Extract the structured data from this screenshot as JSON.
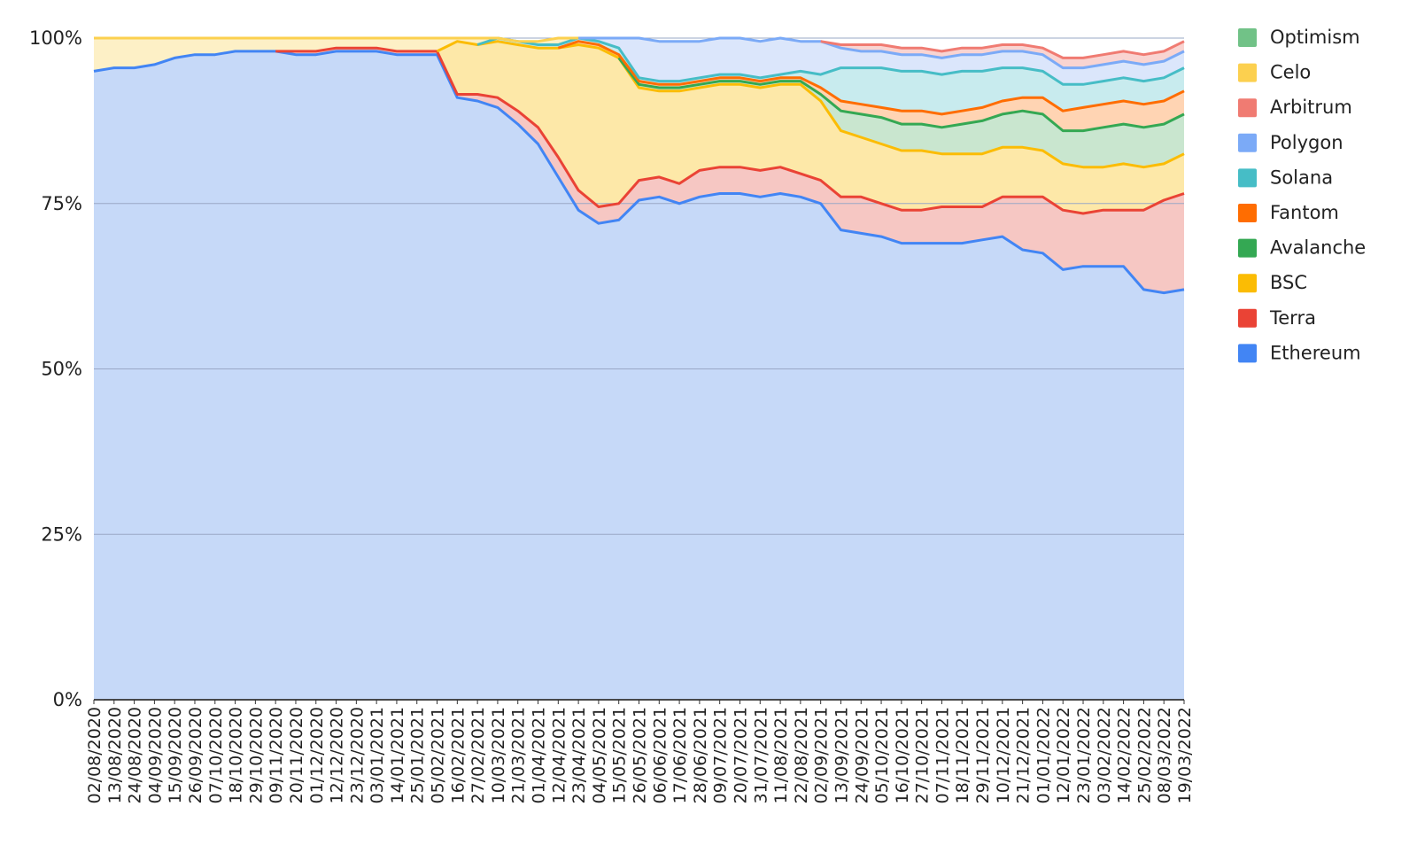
{
  "chart_data": {
    "type": "area",
    "stacked": true,
    "normalized": true,
    "title": "",
    "xlabel": "",
    "ylabel": "",
    "ylim": [
      0,
      100
    ],
    "y_ticks": [
      "0%",
      "25%",
      "50%",
      "75%",
      "100%"
    ],
    "grid": true,
    "legend_position": "right",
    "x_tick_labels": [
      "02/08/2020",
      "13/08/2020",
      "24/08/2020",
      "04/09/2020",
      "15/09/2020",
      "26/09/2020",
      "07/10/2020",
      "18/10/2020",
      "29/10/2020",
      "09/11/2020",
      "20/11/2020",
      "01/12/2020",
      "12/12/2020",
      "23/12/2020",
      "03/01/2021",
      "14/01/2021",
      "25/01/2021",
      "05/02/2021",
      "16/02/2021",
      "27/02/2021",
      "10/03/2021",
      "21/03/2021",
      "01/04/2021",
      "12/04/2021",
      "23/04/2021",
      "04/05/2021",
      "15/05/2021",
      "26/05/2021",
      "06/06/2021",
      "17/06/2021",
      "28/06/2021",
      "09/07/2021",
      "20/07/2021",
      "31/07/2021",
      "11/08/2021",
      "22/08/2021",
      "02/09/2021",
      "13/09/2021",
      "24/09/2021",
      "05/10/2021",
      "16/10/2021",
      "27/10/2021",
      "07/11/2021",
      "18/11/2021",
      "29/11/2021",
      "10/12/2021",
      "21/12/2021",
      "01/01/2022",
      "12/01/2022",
      "23/01/2022",
      "03/02/2022",
      "14/02/2022",
      "25/02/2022",
      "08/03/2022",
      "19/03/2022"
    ],
    "x": [
      "02/08/2020",
      "13/08/2020",
      "24/08/2020",
      "04/09/2020",
      "15/09/2020",
      "26/09/2020",
      "07/10/2020",
      "18/10/2020",
      "29/10/2020",
      "09/11/2020",
      "20/11/2020",
      "01/12/2020",
      "12/12/2020",
      "23/12/2020",
      "03/01/2021",
      "14/01/2021",
      "25/01/2021",
      "05/02/2021",
      "16/02/2021",
      "27/02/2021",
      "10/03/2021",
      "21/03/2021",
      "01/04/2021",
      "12/04/2021",
      "23/04/2021",
      "04/05/2021",
      "15/05/2021",
      "26/05/2021",
      "06/06/2021",
      "17/06/2021",
      "28/06/2021",
      "09/07/2021",
      "20/07/2021",
      "31/07/2021",
      "11/08/2021",
      "22/08/2021",
      "02/09/2021",
      "13/09/2021",
      "24/09/2021",
      "05/10/2021",
      "16/10/2021",
      "27/10/2021",
      "07/11/2021",
      "18/11/2021",
      "29/11/2021",
      "10/12/2021",
      "21/12/2021",
      "01/01/2022",
      "12/01/2022",
      "23/01/2022",
      "03/02/2022",
      "14/02/2022",
      "25/02/2022",
      "08/03/2022",
      "19/03/2022"
    ],
    "series": [
      {
        "name": "Ethereum",
        "color": "#4285f4",
        "fill": "#c6d9f8",
        "values": [
          95,
          95.5,
          95.5,
          96,
          97,
          97.5,
          97.5,
          98,
          98,
          98,
          97.5,
          97.5,
          98,
          98,
          98,
          97.5,
          97.5,
          97.5,
          91,
          90.5,
          89.5,
          87,
          84,
          79,
          74,
          72,
          72.5,
          75.5,
          76,
          75,
          76,
          76.5,
          76.5,
          76,
          76.5,
          76,
          75,
          71,
          70.5,
          70,
          69,
          69,
          69,
          69,
          69.5,
          70,
          68,
          67.5,
          65,
          65.5,
          65.5,
          65.5,
          62,
          61.5,
          62
        ]
      },
      {
        "name": "Terra",
        "color": "#ea4335",
        "fill": "#f6c7c3",
        "values": [
          0,
          0,
          0,
          0,
          0,
          0,
          0,
          0,
          0,
          0,
          0.5,
          0.5,
          0.5,
          0.5,
          0.5,
          0.5,
          0.5,
          0.5,
          0.5,
          1,
          1.5,
          2,
          2.5,
          3,
          3,
          2.5,
          2.5,
          3,
          3,
          3,
          4,
          4,
          4,
          4,
          4,
          3.5,
          3.5,
          5,
          5.5,
          5,
          5,
          5,
          5.5,
          5.5,
          5,
          6,
          8,
          8.5,
          9,
          8,
          8.5,
          8.5,
          12,
          14,
          14.5
        ]
      },
      {
        "name": "BSC",
        "color": "#fbbc04",
        "fill": "#fde8a8",
        "values": [
          0,
          0,
          0,
          0,
          0,
          0,
          0,
          0,
          0,
          0,
          0,
          0,
          0,
          0,
          0,
          0,
          0,
          0,
          8,
          7.5,
          8.5,
          10,
          12,
          16.5,
          22,
          24,
          22,
          14,
          13,
          14,
          12.5,
          12.5,
          12.5,
          12.5,
          12.5,
          13.5,
          12,
          10,
          9,
          9,
          9,
          9,
          8,
          8,
          8,
          7.5,
          7.5,
          7,
          7,
          7,
          6.5,
          7,
          6.5,
          5.5,
          6
        ]
      },
      {
        "name": "Avalanche",
        "color": "#34a853",
        "fill": "#c9e6cf",
        "values": [
          0,
          0,
          0,
          0,
          0,
          0,
          0,
          0,
          0,
          0,
          0,
          0,
          0,
          0,
          0,
          0,
          0,
          0,
          0,
          0,
          0,
          0,
          0,
          0,
          0,
          0,
          0,
          0.5,
          0.5,
          0.5,
          0.5,
          0.5,
          0.5,
          0.5,
          0.5,
          0.5,
          1,
          3,
          3.5,
          4,
          4,
          4,
          4,
          4.5,
          5,
          5,
          5.5,
          5.5,
          5,
          5.5,
          6,
          6,
          6,
          6,
          6
        ]
      },
      {
        "name": "Fantom",
        "color": "#ff6d01",
        "fill": "#ffd4b3",
        "values": [
          0,
          0,
          0,
          0,
          0,
          0,
          0,
          0,
          0,
          0,
          0,
          0,
          0,
          0,
          0,
          0,
          0,
          0,
          0,
          0,
          0,
          0,
          0,
          0,
          0.5,
          0.5,
          0.5,
          0.5,
          0.5,
          0.5,
          0.5,
          0.5,
          0.5,
          0.5,
          0.5,
          0.5,
          1,
          1.5,
          1.5,
          1.5,
          2,
          2,
          2,
          2,
          2,
          2,
          2,
          2.5,
          3,
          3.5,
          3.5,
          3.5,
          3.5,
          3.5,
          3.5
        ]
      },
      {
        "name": "Solana",
        "color": "#46bdc6",
        "fill": "#c8ebee",
        "values": [
          0,
          0,
          0,
          0,
          0,
          0,
          0,
          0,
          0,
          0,
          0,
          0,
          0,
          0,
          0,
          0,
          0,
          0,
          0,
          0,
          0.5,
          0.5,
          0.5,
          0.5,
          0.5,
          0.5,
          1,
          0.5,
          0.5,
          0.5,
          0.5,
          0.5,
          0.5,
          0.5,
          0.5,
          1,
          2,
          5,
          5.5,
          6,
          6,
          6,
          6,
          6,
          5.5,
          5,
          4.5,
          4,
          4,
          3.5,
          3.5,
          3.5,
          3.5,
          3.5,
          3.5
        ]
      },
      {
        "name": "Polygon",
        "color": "#7baaf7",
        "fill": "#dbe6fb",
        "values": [
          0,
          0,
          0,
          0,
          0,
          0,
          0,
          0,
          0,
          0,
          0,
          0,
          0,
          0,
          0,
          0,
          0,
          0,
          0,
          0,
          0,
          0,
          0,
          0,
          0,
          0.5,
          1.5,
          6,
          6,
          6,
          5.5,
          5.5,
          5.5,
          5.5,
          5.5,
          4.5,
          5,
          3,
          2.5,
          2.5,
          2.5,
          2.5,
          2.5,
          2.5,
          2.5,
          2.5,
          2.5,
          2.5,
          2.5,
          2.5,
          2.5,
          2.5,
          2.5,
          2.5,
          2.5
        ]
      },
      {
        "name": "Arbitrum",
        "color": "#f07b72",
        "fill": "#f9d4d1",
        "values": [
          0,
          0,
          0,
          0,
          0,
          0,
          0,
          0,
          0,
          0,
          0,
          0,
          0,
          0,
          0,
          0,
          0,
          0,
          0,
          0,
          0,
          0,
          0,
          0,
          0,
          0,
          0,
          0,
          0,
          0,
          0,
          0,
          0,
          0,
          0,
          0,
          0,
          0.5,
          1,
          1,
          1,
          1,
          1,
          1,
          1,
          1,
          1,
          1,
          1.5,
          1.5,
          1.5,
          1.5,
          1.5,
          1.5,
          1.5
        ]
      },
      {
        "name": "Celo",
        "color": "#fcd04f",
        "fill": "#fdf0c6",
        "values": [
          5,
          4.5,
          4.5,
          4,
          3,
          2.5,
          2.5,
          2,
          2,
          2,
          2,
          2,
          1.5,
          1.5,
          1.5,
          2,
          2,
          2,
          0.5,
          1,
          0,
          0,
          0.5,
          1,
          0,
          0,
          0,
          0,
          0,
          0,
          0,
          0,
          0,
          0,
          0,
          0,
          0,
          0,
          0,
          0,
          0,
          0,
          0,
          0,
          0,
          0,
          0,
          0,
          0,
          0,
          0,
          0,
          0,
          0,
          0
        ]
      },
      {
        "name": "Optimism",
        "color": "#71c287",
        "fill": "#d4eedb",
        "values": [
          0,
          0,
          0,
          0,
          0,
          0,
          0,
          0,
          0,
          0,
          0,
          0,
          0,
          0,
          0,
          0,
          0,
          0,
          0,
          0,
          0,
          0,
          0,
          0,
          0,
          0,
          0,
          0,
          0,
          0,
          0,
          0,
          0,
          0,
          0,
          0,
          0,
          0,
          0,
          0,
          0,
          0,
          0,
          0,
          0,
          0,
          0,
          0,
          0,
          0,
          0,
          0,
          0,
          0,
          0
        ]
      }
    ]
  }
}
